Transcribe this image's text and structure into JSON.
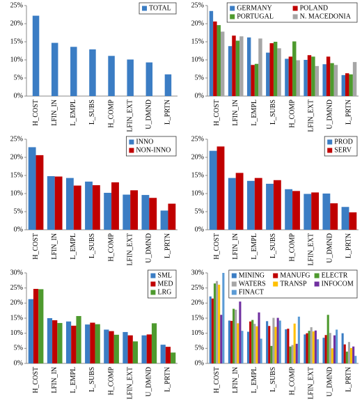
{
  "chart_data": [
    {
      "type": "bar",
      "categories": [
        "H_COST",
        "LFIN_IN",
        "L_EMPL",
        "L_SUBS",
        "H_COMP",
        "LFIN_EXT",
        "U_DMND",
        "L_PRTN"
      ],
      "series": [
        {
          "name": "TOTAL",
          "color": "#3b7dc4",
          "values": [
            22.2,
            14.7,
            13.6,
            12.9,
            11.1,
            10.1,
            9.3,
            6.0
          ]
        }
      ],
      "ylim": [
        0,
        25
      ],
      "yticks": [
        {
          "value": 0,
          "label": "0%"
        },
        {
          "value": 5,
          "label": "5%"
        },
        {
          "value": 10,
          "label": "10%"
        },
        {
          "value": 15,
          "label": "15%"
        },
        {
          "value": 20,
          "label": "20%"
        },
        {
          "value": 25,
          "label": "25%"
        }
      ],
      "legend": "top-right"
    },
    {
      "type": "bar",
      "categories": [
        "H_COST",
        "LFIN_IN",
        "L_EMPL",
        "L_SUBS",
        "H_COMP",
        "LFIN_EXT",
        "U_DMND",
        "L_PRTN"
      ],
      "series": [
        {
          "name": "GERMANY",
          "color": "#3b7dc4",
          "values": [
            23.5,
            13.8,
            16.2,
            12.0,
            10.3,
            10.0,
            8.8,
            5.8
          ]
        },
        {
          "name": "POLAND",
          "color": "#c00000",
          "values": [
            20.6,
            16.7,
            8.6,
            14.6,
            10.9,
            11.3,
            10.9,
            6.3
          ]
        },
        {
          "name": "PORTUGAL",
          "color": "#4e9a2e",
          "values": [
            19.6,
            15.3,
            8.9,
            15.0,
            15.1,
            10.9,
            9.1,
            6.0
          ]
        },
        {
          "name": "N. MACEDONIA",
          "color": "#a6a6a6",
          "values": [
            17.8,
            16.5,
            15.9,
            13.2,
            9.9,
            8.3,
            8.6,
            9.4
          ]
        }
      ],
      "ylim": [
        0,
        25
      ],
      "yticks": [
        {
          "value": 0,
          "label": "0%"
        },
        {
          "value": 5,
          "label": "5%"
        },
        {
          "value": 10,
          "label": "10%"
        },
        {
          "value": 15,
          "label": "15%"
        },
        {
          "value": 20,
          "label": "20%"
        },
        {
          "value": 25,
          "label": "25%"
        }
      ],
      "legend": "top-right"
    },
    {
      "type": "bar",
      "categories": [
        "H_COST",
        "LFIN_IN",
        "L_EMPL",
        "L_SUBS",
        "H_COMP",
        "LFIN_EXT",
        "U_DMND",
        "L_PRTN"
      ],
      "series": [
        {
          "name": "INNO",
          "color": "#3b7dc4",
          "values": [
            22.8,
            14.8,
            14.3,
            13.3,
            10.2,
            9.7,
            9.6,
            5.3
          ]
        },
        {
          "name": "NON-INNO",
          "color": "#c00000",
          "values": [
            20.6,
            14.7,
            12.2,
            12.3,
            13.1,
            10.9,
            8.8,
            7.2
          ]
        }
      ],
      "ylim": [
        0,
        25
      ],
      "yticks": [
        {
          "value": 0,
          "label": "0%"
        },
        {
          "value": 5,
          "label": "5%"
        },
        {
          "value": 10,
          "label": "10%"
        },
        {
          "value": 15,
          "label": "15%"
        },
        {
          "value": 20,
          "label": "20%"
        },
        {
          "value": 25,
          "label": "25%"
        }
      ],
      "legend": "top-right"
    },
    {
      "type": "bar",
      "categories": [
        "H_COST",
        "LFIN_IN",
        "L_EMPL",
        "L_SUBS",
        "H_COMP",
        "LFIN_EXT",
        "U_DMND",
        "L_PRTN"
      ],
      "series": [
        {
          "name": "PROD",
          "color": "#3b7dc4",
          "values": [
            21.8,
            14.3,
            13.5,
            12.7,
            11.2,
            9.9,
            10.0,
            6.3
          ]
        },
        {
          "name": "SERV",
          "color": "#c00000",
          "values": [
            23.0,
            15.7,
            14.3,
            13.7,
            10.7,
            10.3,
            7.3,
            4.8
          ]
        }
      ],
      "ylim": [
        0,
        25
      ],
      "yticks": [
        {
          "value": 0,
          "label": "0%"
        },
        {
          "value": 5,
          "label": "5%"
        },
        {
          "value": 10,
          "label": "10%"
        },
        {
          "value": 15,
          "label": "15%"
        },
        {
          "value": 20,
          "label": "20%"
        },
        {
          "value": 25,
          "label": "25%"
        }
      ],
      "legend": "top-right"
    },
    {
      "type": "bar",
      "categories": [
        "H_COST",
        "LFIN_IN",
        "L_EMPL",
        "L_SUBS",
        "H_COMP",
        "LFIN_EXT",
        "U_DMND",
        "L_PRTN"
      ],
      "series": [
        {
          "name": "SML",
          "color": "#3b7dc4",
          "values": [
            21.3,
            15.0,
            13.9,
            12.9,
            11.2,
            10.4,
            9.3,
            6.2
          ]
        },
        {
          "name": "MED",
          "color": "#c00000",
          "values": [
            24.7,
            14.3,
            12.5,
            13.5,
            10.7,
            9.3,
            9.6,
            5.5
          ]
        },
        {
          "name": "LRG",
          "color": "#4e9a2e",
          "values": [
            24.6,
            13.4,
            15.7,
            13.0,
            9.5,
            7.3,
            13.3,
            3.6
          ]
        }
      ],
      "ylim": [
        0,
        30
      ],
      "yticks": [
        {
          "value": 0,
          "label": "0%"
        },
        {
          "value": 5,
          "label": "5%"
        },
        {
          "value": 10,
          "label": "10%"
        },
        {
          "value": 15,
          "label": "15%"
        },
        {
          "value": 20,
          "label": "20%"
        },
        {
          "value": 25,
          "label": "25%"
        },
        {
          "value": 30,
          "label": "30%"
        }
      ],
      "legend": "top-right"
    },
    {
      "type": "bar",
      "categories": [
        "H_COST",
        "LFIN_IN",
        "L_EMPL",
        "L_SUBS",
        "H_COMP",
        "LFIN_EXT",
        "U_DMND",
        "L_PRTN"
      ],
      "series": [
        {
          "name": "MINING",
          "color": "#3b7dc4",
          "values": [
            22.2,
            14.2,
            10.5,
            14.0,
            11.3,
            9.6,
            8.5,
            10.0
          ]
        },
        {
          "name": "MANUFG",
          "color": "#c00000",
          "values": [
            21.5,
            14.1,
            13.9,
            12.4,
            11.5,
            10.0,
            9.4,
            6.3
          ]
        },
        {
          "name": "ELECTR",
          "color": "#4e9a2e",
          "values": [
            26.5,
            18.1,
            14.4,
            5.8,
            5.6,
            10.8,
            16.1,
            3.9
          ]
        },
        {
          "name": "WATERS",
          "color": "#a6a6a6",
          "values": [
            27.3,
            17.8,
            13.1,
            15.1,
            6.1,
            12.0,
            10.1,
            7.1
          ]
        },
        {
          "name": "TRANSP",
          "color": "#ffc000",
          "values": [
            26.1,
            13.3,
            12.3,
            12.1,
            13.2,
            10.6,
            5.0,
            5.1
          ]
        },
        {
          "name": "INFOCOM",
          "color": "#7030a0",
          "values": [
            16.1,
            20.5,
            16.9,
            15.1,
            6.5,
            10.9,
            9.3,
            5.6
          ]
        },
        {
          "name": "FINACT",
          "color": "#5b9bd5",
          "values": [
            30.0,
            10.8,
            8.2,
            14.2,
            15.5,
            8.0,
            11.2,
            2.5
          ]
        }
      ],
      "ylim": [
        0,
        30
      ],
      "yticks": [
        {
          "value": 0,
          "label": "0%"
        },
        {
          "value": 5,
          "label": "5%"
        },
        {
          "value": 10,
          "label": "10%"
        },
        {
          "value": 15,
          "label": "15%"
        },
        {
          "value": 20,
          "label": "20%"
        },
        {
          "value": 25,
          "label": "25%"
        },
        {
          "value": 30,
          "label": "30%"
        }
      ],
      "legend": "top-right"
    }
  ]
}
